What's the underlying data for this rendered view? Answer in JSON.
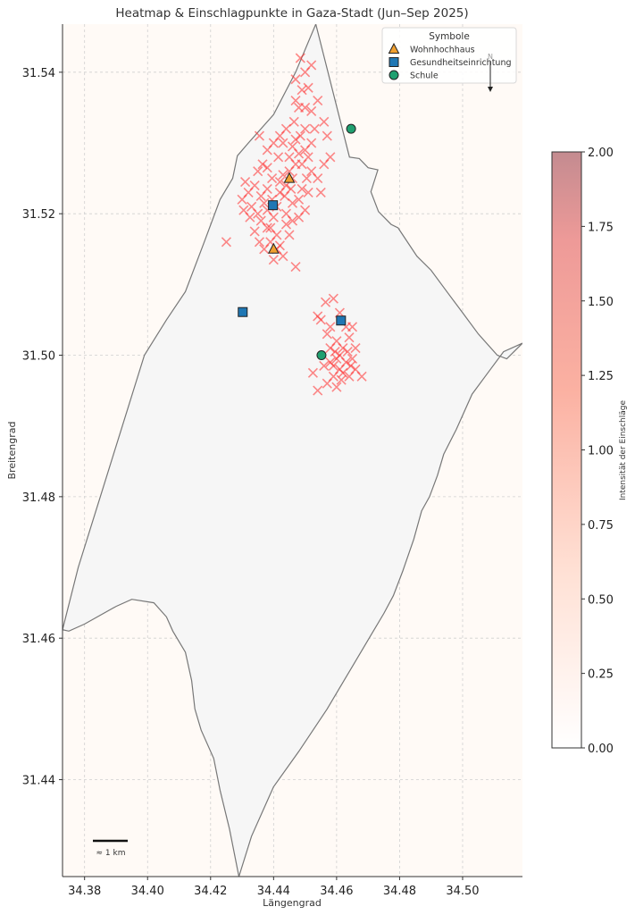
{
  "chart_data": {
    "type": "scatter",
    "title": "Heatmap & Einschlagpunkte in Gaza-Stadt (Jun–Sep 2025)",
    "xlabel": "Längengrad",
    "ylabel": "Breitengrad",
    "xlim": [
      34.373,
      34.519
    ],
    "ylim": [
      31.4263,
      31.5468
    ],
    "xticks": [
      34.38,
      34.4,
      34.42,
      34.44,
      34.46,
      34.48,
      34.5
    ],
    "xtick_labels": [
      "34.38",
      "34.40",
      "34.42",
      "34.44",
      "34.46",
      "34.48",
      "34.50"
    ],
    "yticks": [
      31.44,
      31.46,
      31.48,
      31.5,
      31.52,
      31.54
    ],
    "ytick_labels": [
      "31.44",
      "31.46",
      "31.48",
      "31.50",
      "31.52",
      "31.54"
    ],
    "grid": true,
    "background_color": "#fffaf6",
    "boundary_fill": "#f6f6f6",
    "boundary_stroke": "#777777",
    "boundary": [
      [
        34.4534,
        31.5468
      ],
      [
        34.4641,
        31.528
      ],
      [
        34.4672,
        31.5278
      ],
      [
        34.47,
        31.5265
      ],
      [
        34.4731,
        31.5262
      ],
      [
        34.4709,
        31.5231
      ],
      [
        34.4733,
        31.5203
      ],
      [
        34.4773,
        31.5185
      ],
      [
        34.4795,
        31.518
      ],
      [
        34.4855,
        31.514
      ],
      [
        34.49,
        31.512
      ],
      [
        34.495,
        31.509
      ],
      [
        34.5,
        31.506
      ],
      [
        34.505,
        31.503
      ],
      [
        34.511,
        31.5
      ],
      [
        34.514,
        31.4995
      ],
      [
        34.519,
        31.5017
      ],
      [
        34.513,
        31.5005
      ],
      [
        34.508,
        31.4975
      ],
      [
        34.503,
        31.4945
      ],
      [
        34.498,
        31.4895
      ],
      [
        34.494,
        31.486
      ],
      [
        34.492,
        31.483
      ],
      [
        34.4895,
        31.48
      ],
      [
        34.487,
        31.478
      ],
      [
        34.4845,
        31.474
      ],
      [
        34.481,
        31.4695
      ],
      [
        34.478,
        31.466
      ],
      [
        34.475,
        31.4635
      ],
      [
        34.471,
        31.4605
      ],
      [
        34.465,
        31.456
      ],
      [
        34.457,
        31.45
      ],
      [
        34.448,
        31.444
      ],
      [
        34.44,
        31.439
      ],
      [
        34.433,
        31.432
      ],
      [
        34.429,
        31.4263
      ],
      [
        34.426,
        31.433
      ],
      [
        34.423,
        31.4385
      ],
      [
        34.421,
        31.443
      ],
      [
        34.417,
        31.447
      ],
      [
        34.415,
        31.45
      ],
      [
        34.414,
        31.454
      ],
      [
        34.412,
        31.458
      ],
      [
        34.408,
        31.461
      ],
      [
        34.406,
        31.463
      ],
      [
        34.402,
        31.465
      ],
      [
        34.395,
        31.4655
      ],
      [
        34.39,
        31.4645
      ],
      [
        34.38,
        31.462
      ],
      [
        34.375,
        31.461
      ],
      [
        34.373,
        31.4612
      ],
      [
        34.378,
        31.47
      ],
      [
        34.385,
        31.48
      ],
      [
        34.392,
        31.49
      ],
      [
        34.399,
        31.5
      ],
      [
        34.406,
        31.505
      ],
      [
        34.412,
        31.509
      ],
      [
        34.418,
        31.516
      ],
      [
        34.423,
        31.522
      ],
      [
        34.427,
        31.525
      ],
      [
        34.4285,
        31.5282
      ],
      [
        34.432,
        31.53
      ],
      [
        34.44,
        31.534
      ],
      [
        34.447,
        31.54
      ],
      [
        34.4534,
        31.5468
      ]
    ],
    "impact_points": [
      [
        34.432,
        31.523
      ],
      [
        34.434,
        31.524
      ],
      [
        34.436,
        31.5225
      ],
      [
        34.433,
        31.521
      ],
      [
        34.435,
        31.52
      ],
      [
        34.437,
        31.5215
      ],
      [
        34.43,
        31.522
      ],
      [
        34.431,
        31.5245
      ],
      [
        34.438,
        31.5235
      ],
      [
        34.4395,
        31.522
      ],
      [
        34.436,
        31.519
      ],
      [
        34.434,
        31.5175
      ],
      [
        34.438,
        31.518
      ],
      [
        34.44,
        31.5195
      ],
      [
        34.441,
        31.517
      ],
      [
        34.439,
        31.516
      ],
      [
        34.437,
        31.515
      ],
      [
        34.442,
        31.5155
      ],
      [
        34.443,
        31.514
      ],
      [
        34.44,
        31.5135
      ],
      [
        34.438,
        31.5205
      ],
      [
        34.441,
        31.521
      ],
      [
        34.442,
        31.523
      ],
      [
        34.444,
        31.524
      ],
      [
        34.445,
        31.526
      ],
      [
        34.443,
        31.5255
      ],
      [
        34.446,
        31.525
      ],
      [
        34.447,
        31.527
      ],
      [
        34.448,
        31.5285
      ],
      [
        34.446,
        31.5295
      ],
      [
        34.449,
        31.527
      ],
      [
        34.45,
        31.529
      ],
      [
        34.451,
        31.528
      ],
      [
        34.445,
        31.528
      ],
      [
        34.447,
        31.5305
      ],
      [
        34.4485,
        31.531
      ],
      [
        34.45,
        31.532
      ],
      [
        34.452,
        31.53
      ],
      [
        34.453,
        31.532
      ],
      [
        34.449,
        31.5235
      ],
      [
        34.4505,
        31.525
      ],
      [
        34.452,
        31.526
      ],
      [
        34.451,
        31.523
      ],
      [
        34.448,
        31.522
      ],
      [
        34.446,
        31.5215
      ],
      [
        34.444,
        31.52
      ],
      [
        34.446,
        31.519
      ],
      [
        34.445,
        31.517
      ],
      [
        34.448,
        31.5195
      ],
      [
        34.45,
        31.5205
      ],
      [
        34.4415,
        31.528
      ],
      [
        34.443,
        31.53
      ],
      [
        34.444,
        31.532
      ],
      [
        34.442,
        31.531
      ],
      [
        34.44,
        31.53
      ],
      [
        34.438,
        31.529
      ],
      [
        34.4465,
        31.533
      ],
      [
        34.448,
        31.535
      ],
      [
        34.45,
        31.535
      ],
      [
        34.452,
        31.5345
      ],
      [
        34.447,
        31.536
      ],
      [
        34.449,
        31.5375
      ],
      [
        34.451,
        31.5378
      ],
      [
        34.454,
        31.536
      ],
      [
        34.456,
        31.533
      ],
      [
        34.457,
        31.531
      ],
      [
        34.458,
        31.528
      ],
      [
        34.456,
        31.527
      ],
      [
        34.454,
        31.525
      ],
      [
        34.455,
        31.523
      ],
      [
        34.45,
        31.54
      ],
      [
        34.452,
        31.541
      ],
      [
        34.4485,
        31.542
      ],
      [
        34.447,
        31.539
      ],
      [
        34.4355,
        31.531
      ],
      [
        34.438,
        31.5265
      ],
      [
        34.435,
        31.526
      ],
      [
        34.4325,
        31.5195
      ],
      [
        34.4305,
        31.5205
      ],
      [
        34.439,
        31.518
      ],
      [
        34.4355,
        31.516
      ],
      [
        34.441,
        31.515
      ],
      [
        34.444,
        31.5185
      ],
      [
        34.447,
        31.5125
      ],
      [
        34.425,
        31.516
      ],
      [
        34.4435,
        31.5225
      ],
      [
        34.442,
        31.5245
      ],
      [
        34.4455,
        31.5235
      ],
      [
        34.4395,
        31.525
      ],
      [
        34.4365,
        31.527
      ],
      [
        34.459,
        31.508
      ],
      [
        34.461,
        31.506
      ],
      [
        34.463,
        31.504
      ],
      [
        34.46,
        31.502
      ],
      [
        34.458,
        31.501
      ],
      [
        34.462,
        31.501
      ],
      [
        34.464,
        31.5025
      ],
      [
        34.46,
        31.4995
      ],
      [
        34.458,
        31.499
      ],
      [
        34.456,
        31.4985
      ],
      [
        34.461,
        31.498
      ],
      [
        34.463,
        31.499
      ],
      [
        34.465,
        31.4995
      ],
      [
        34.459,
        31.497
      ],
      [
        34.462,
        31.4975
      ],
      [
        34.464,
        31.497
      ],
      [
        34.457,
        31.496
      ],
      [
        34.46,
        31.4955
      ],
      [
        34.466,
        31.498
      ],
      [
        34.468,
        31.497
      ],
      [
        34.454,
        31.495
      ],
      [
        34.455,
        31.505
      ],
      [
        34.457,
        31.503
      ],
      [
        34.465,
        31.504
      ],
      [
        34.466,
        31.501
      ],
      [
        34.458,
        31.504
      ],
      [
        34.461,
        31.5
      ],
      [
        34.4635,
        31.5005
      ],
      [
        34.4595,
        31.5005
      ],
      [
        34.4615,
        31.4965
      ],
      [
        34.4565,
        31.5075
      ],
      [
        34.454,
        31.5055
      ],
      [
        34.4525,
        31.4975
      ],
      [
        34.459,
        31.4985
      ],
      [
        34.4645,
        31.4985
      ]
    ],
    "points": [
      {
        "name": "Wohnhochhaus",
        "marker": "triangle",
        "color": "#f0a030",
        "x": 34.445,
        "y": 31.525
      },
      {
        "name": "Wohnhochhaus",
        "marker": "triangle",
        "color": "#f0a030",
        "x": 34.44,
        "y": 31.515
      },
      {
        "name": "Gesundheitseinrichtung",
        "marker": "square",
        "color": "#1f77b4",
        "x": 34.4398,
        "y": 31.5212
      },
      {
        "name": "Gesundheitseinrichtung",
        "marker": "square",
        "color": "#1f77b4",
        "x": 34.4302,
        "y": 31.5061
      },
      {
        "name": "Gesundheitseinrichtung",
        "marker": "square",
        "color": "#1f77b4",
        "x": 34.4614,
        "y": 31.5049
      },
      {
        "name": "Schule",
        "marker": "circle",
        "color": "#20a070",
        "x": 34.4646,
        "y": 31.532
      },
      {
        "name": "Schule",
        "marker": "circle",
        "color": "#20a070",
        "x": 34.4552,
        "y": 31.5
      }
    ],
    "legend": {
      "title": "Symbole",
      "placement": "top-right",
      "entries": [
        {
          "label": "Wohnhochhaus",
          "marker": "triangle",
          "color": "#f0a030"
        },
        {
          "label": "Gesundheitseinrichtung",
          "marker": "square",
          "color": "#1f77b4"
        },
        {
          "label": "Schule",
          "marker": "circle",
          "color": "#20a070"
        }
      ]
    },
    "north_arrow_label": "N",
    "scalebar_label": "≈ 1 km",
    "colorbar": {
      "label": "Intensität der Einschläge",
      "range": [
        0,
        2
      ],
      "ticks": [
        0,
        0.25,
        0.5,
        0.75,
        1.0,
        1.25,
        1.5,
        1.75,
        2.0
      ],
      "tick_labels": [
        "0.00",
        "0.25",
        "0.50",
        "0.75",
        "1.00",
        "1.25",
        "1.50",
        "1.75",
        "2.00"
      ],
      "colors": [
        "#ffffff",
        "#ffd7c8",
        "#fba090",
        "#c48b90"
      ]
    },
    "impact_color": "#ff2a2a"
  }
}
